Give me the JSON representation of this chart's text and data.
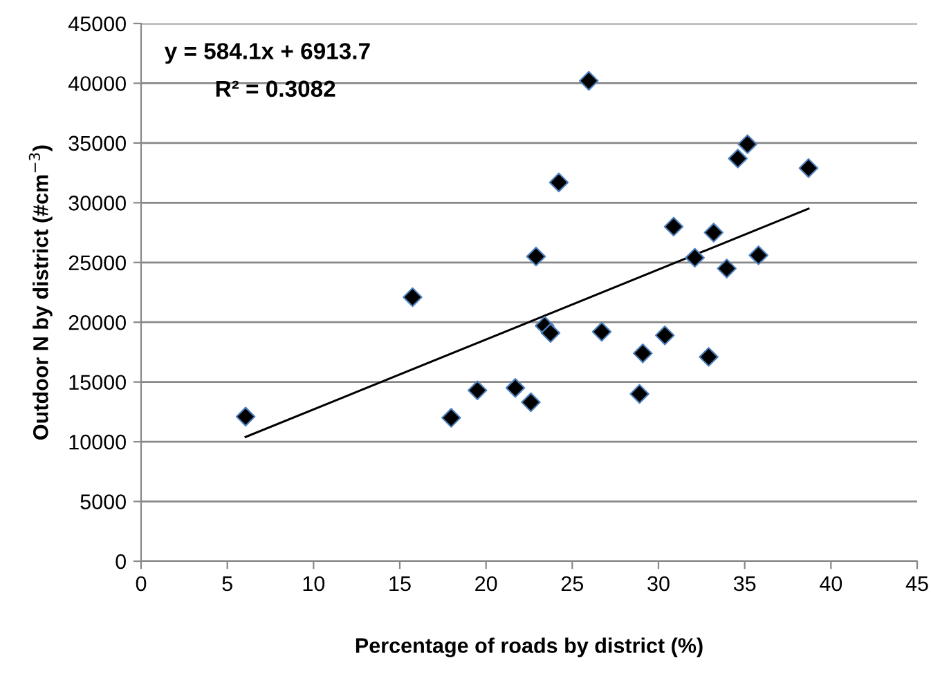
{
  "chart_data": {
    "type": "scatter",
    "xlabel": "Percentage of roads by district (%)",
    "ylabel": "Outdoor N by district (#cm$^{−3}$)",
    "annotations": [
      "y = 584.1x + 6913.7",
      "R² = 0.3082"
    ],
    "series": [
      {
        "color": "#000000",
        "marker": "diamond",
        "x": [
          6.06,
          15.74,
          17.98,
          19.5,
          21.7,
          22.6,
          22.9,
          25.96,
          24.22,
          23.4,
          23.74,
          26.71,
          29.09,
          28.9,
          30.37,
          32.91,
          30.88,
          32.11,
          33.2,
          33.96,
          34.6,
          35.16,
          35.8,
          38.7
        ],
        "values": [
          12100,
          22100,
          12000,
          14300,
          14500,
          13300,
          25500,
          40200,
          31700,
          19700,
          19100,
          19200,
          17400,
          14000,
          18900,
          17100,
          28000,
          25400,
          27500,
          24500,
          33700,
          34900,
          25600,
          32900
        ]
      },
      {
        "type": "line",
        "color": "#000000",
        "marker": "none",
        "x": [
          6.06,
          38.7
        ],
        "values": [
          10400,
          29500
        ]
      }
    ],
    "xlim": [
      0,
      45
    ],
    "xticks": [
      0,
      5,
      10,
      15,
      20,
      25,
      30,
      35,
      40,
      45
    ],
    "ylim": [
      0,
      45000
    ],
    "yticks": [
      0,
      5000,
      10000,
      15000,
      20000,
      25000,
      30000,
      35000,
      40000,
      45000
    ],
    "grid": "y",
    "legend": false
  }
}
